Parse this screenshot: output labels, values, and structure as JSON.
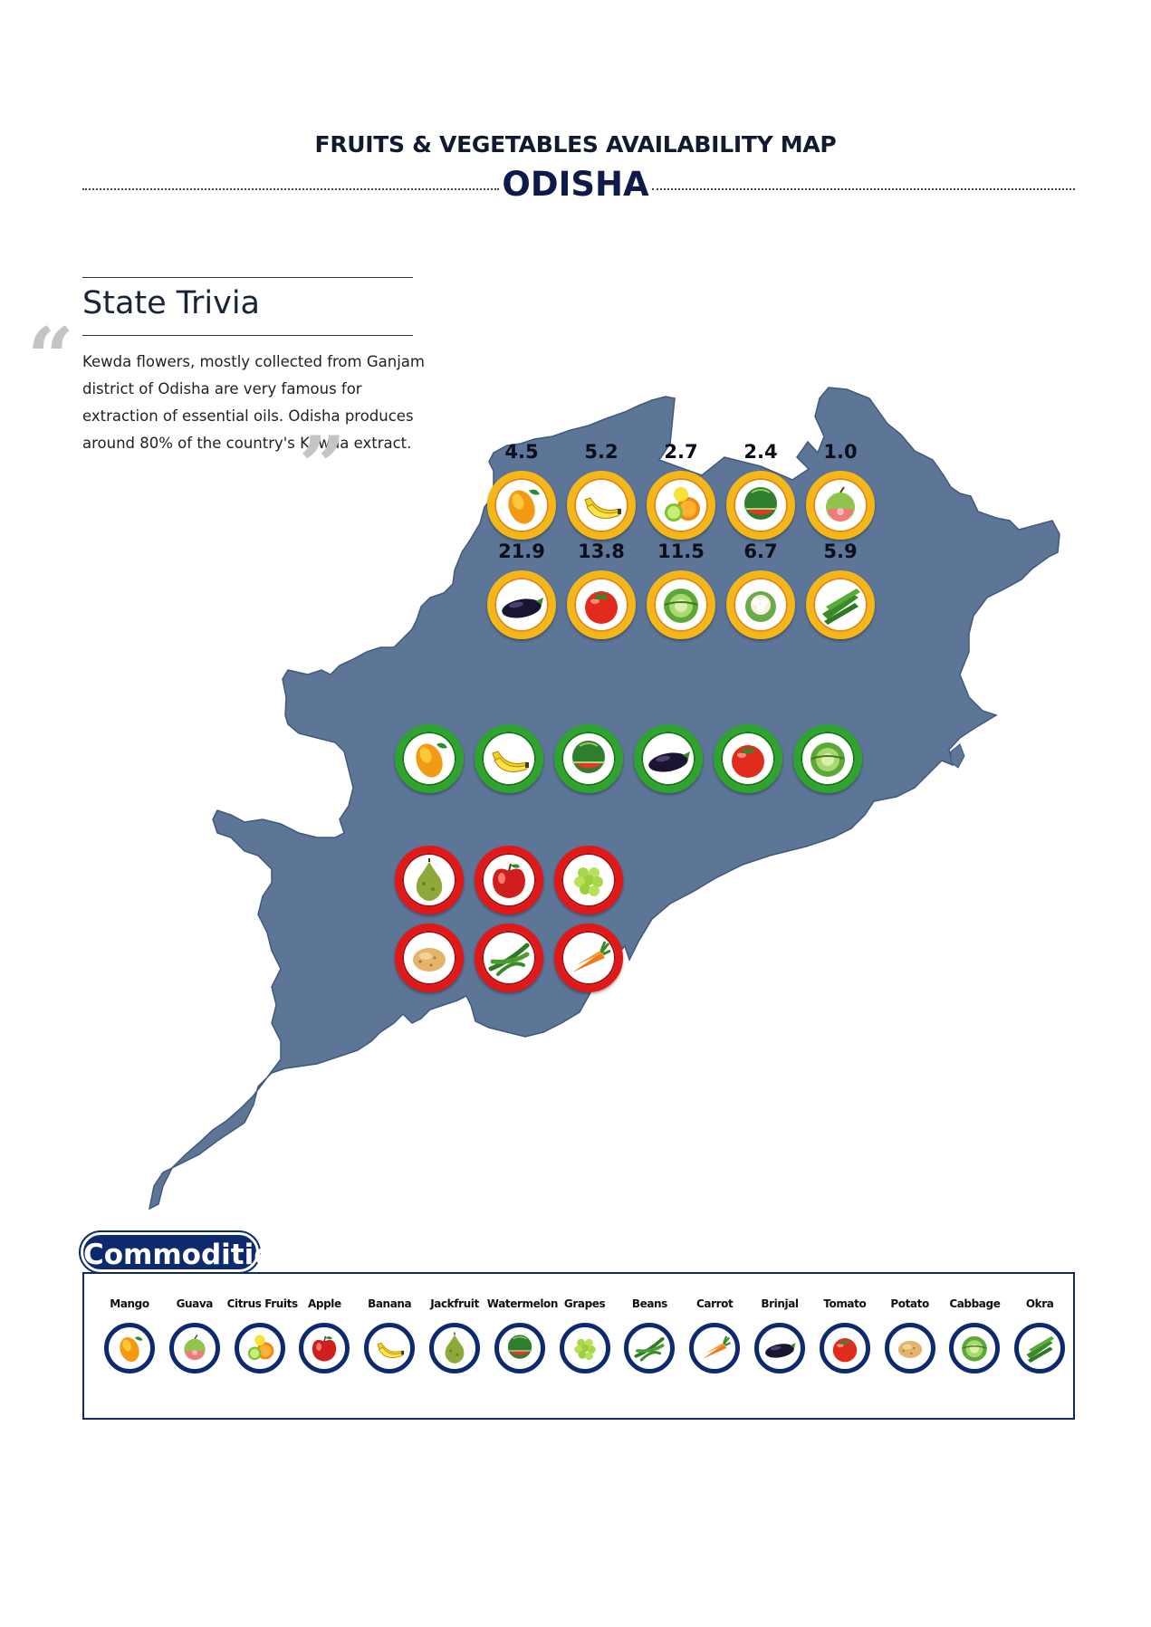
{
  "header": {
    "title": "FRUITS & VEGETABLES AVAILABILITY MAP",
    "state": "ODISHA"
  },
  "trivia": {
    "heading": "State Trivia",
    "text": "Kewda flowers, mostly collected from Ganjam district of Odisha are very famous for extraction of essential oils. Odisha produces around 80% of the country's Kewda extract."
  },
  "map": {
    "region_color": "#5d7698",
    "yellow_row1": [
      {
        "icon": "mango-icon",
        "value": "4.5"
      },
      {
        "icon": "banana-icon",
        "value": "5.2"
      },
      {
        "icon": "citrus-fruits-icon",
        "value": "2.7"
      },
      {
        "icon": "watermelon-icon",
        "value": "2.4"
      },
      {
        "icon": "guava-icon",
        "value": "1.0"
      }
    ],
    "yellow_row2": [
      {
        "icon": "brinjal-icon",
        "value": "21.9"
      },
      {
        "icon": "tomato-icon",
        "value": "13.8"
      },
      {
        "icon": "cabbage-icon",
        "value": "11.5"
      },
      {
        "icon": "cauliflower-icon",
        "value": "6.7"
      },
      {
        "icon": "okra-icon",
        "value": "5.9"
      }
    ],
    "green_row": [
      {
        "icon": "mango-icon"
      },
      {
        "icon": "banana-icon"
      },
      {
        "icon": "watermelon-icon"
      },
      {
        "icon": "brinjal-icon"
      },
      {
        "icon": "tomato-icon"
      },
      {
        "icon": "cabbage-icon"
      }
    ],
    "red_row1": [
      {
        "icon": "jackfruit-icon"
      },
      {
        "icon": "apple-icon"
      },
      {
        "icon": "grapes-icon"
      }
    ],
    "red_row2": [
      {
        "icon": "potato-icon"
      },
      {
        "icon": "beans-icon"
      },
      {
        "icon": "carrot-icon"
      }
    ],
    "badge_colors": {
      "yellow": "#f5b61a",
      "green": "#2ea32e",
      "red": "#e01818"
    }
  },
  "commodities": {
    "title": "Commodities",
    "items": [
      {
        "label": "Mango",
        "icon": "mango-icon"
      },
      {
        "label": "Guava",
        "icon": "guava-icon"
      },
      {
        "label": "Citrus Fruits",
        "icon": "citrus-fruits-icon"
      },
      {
        "label": "Apple",
        "icon": "apple-icon"
      },
      {
        "label": "Banana",
        "icon": "banana-icon"
      },
      {
        "label": "Jackfruit",
        "icon": "jackfruit-icon"
      },
      {
        "label": "Watermelon",
        "icon": "watermelon-icon"
      },
      {
        "label": "Grapes",
        "icon": "grapes-icon"
      },
      {
        "label": "Beans",
        "icon": "beans-icon"
      },
      {
        "label": "Carrot",
        "icon": "carrot-icon"
      },
      {
        "label": "Brinjal",
        "icon": "brinjal-icon"
      },
      {
        "label": "Tomato",
        "icon": "tomato-icon"
      },
      {
        "label": "Potato",
        "icon": "potato-icon"
      },
      {
        "label": "Cabbage",
        "icon": "cabbage-icon"
      },
      {
        "label": "Okra",
        "icon": "okra-icon"
      }
    ]
  }
}
